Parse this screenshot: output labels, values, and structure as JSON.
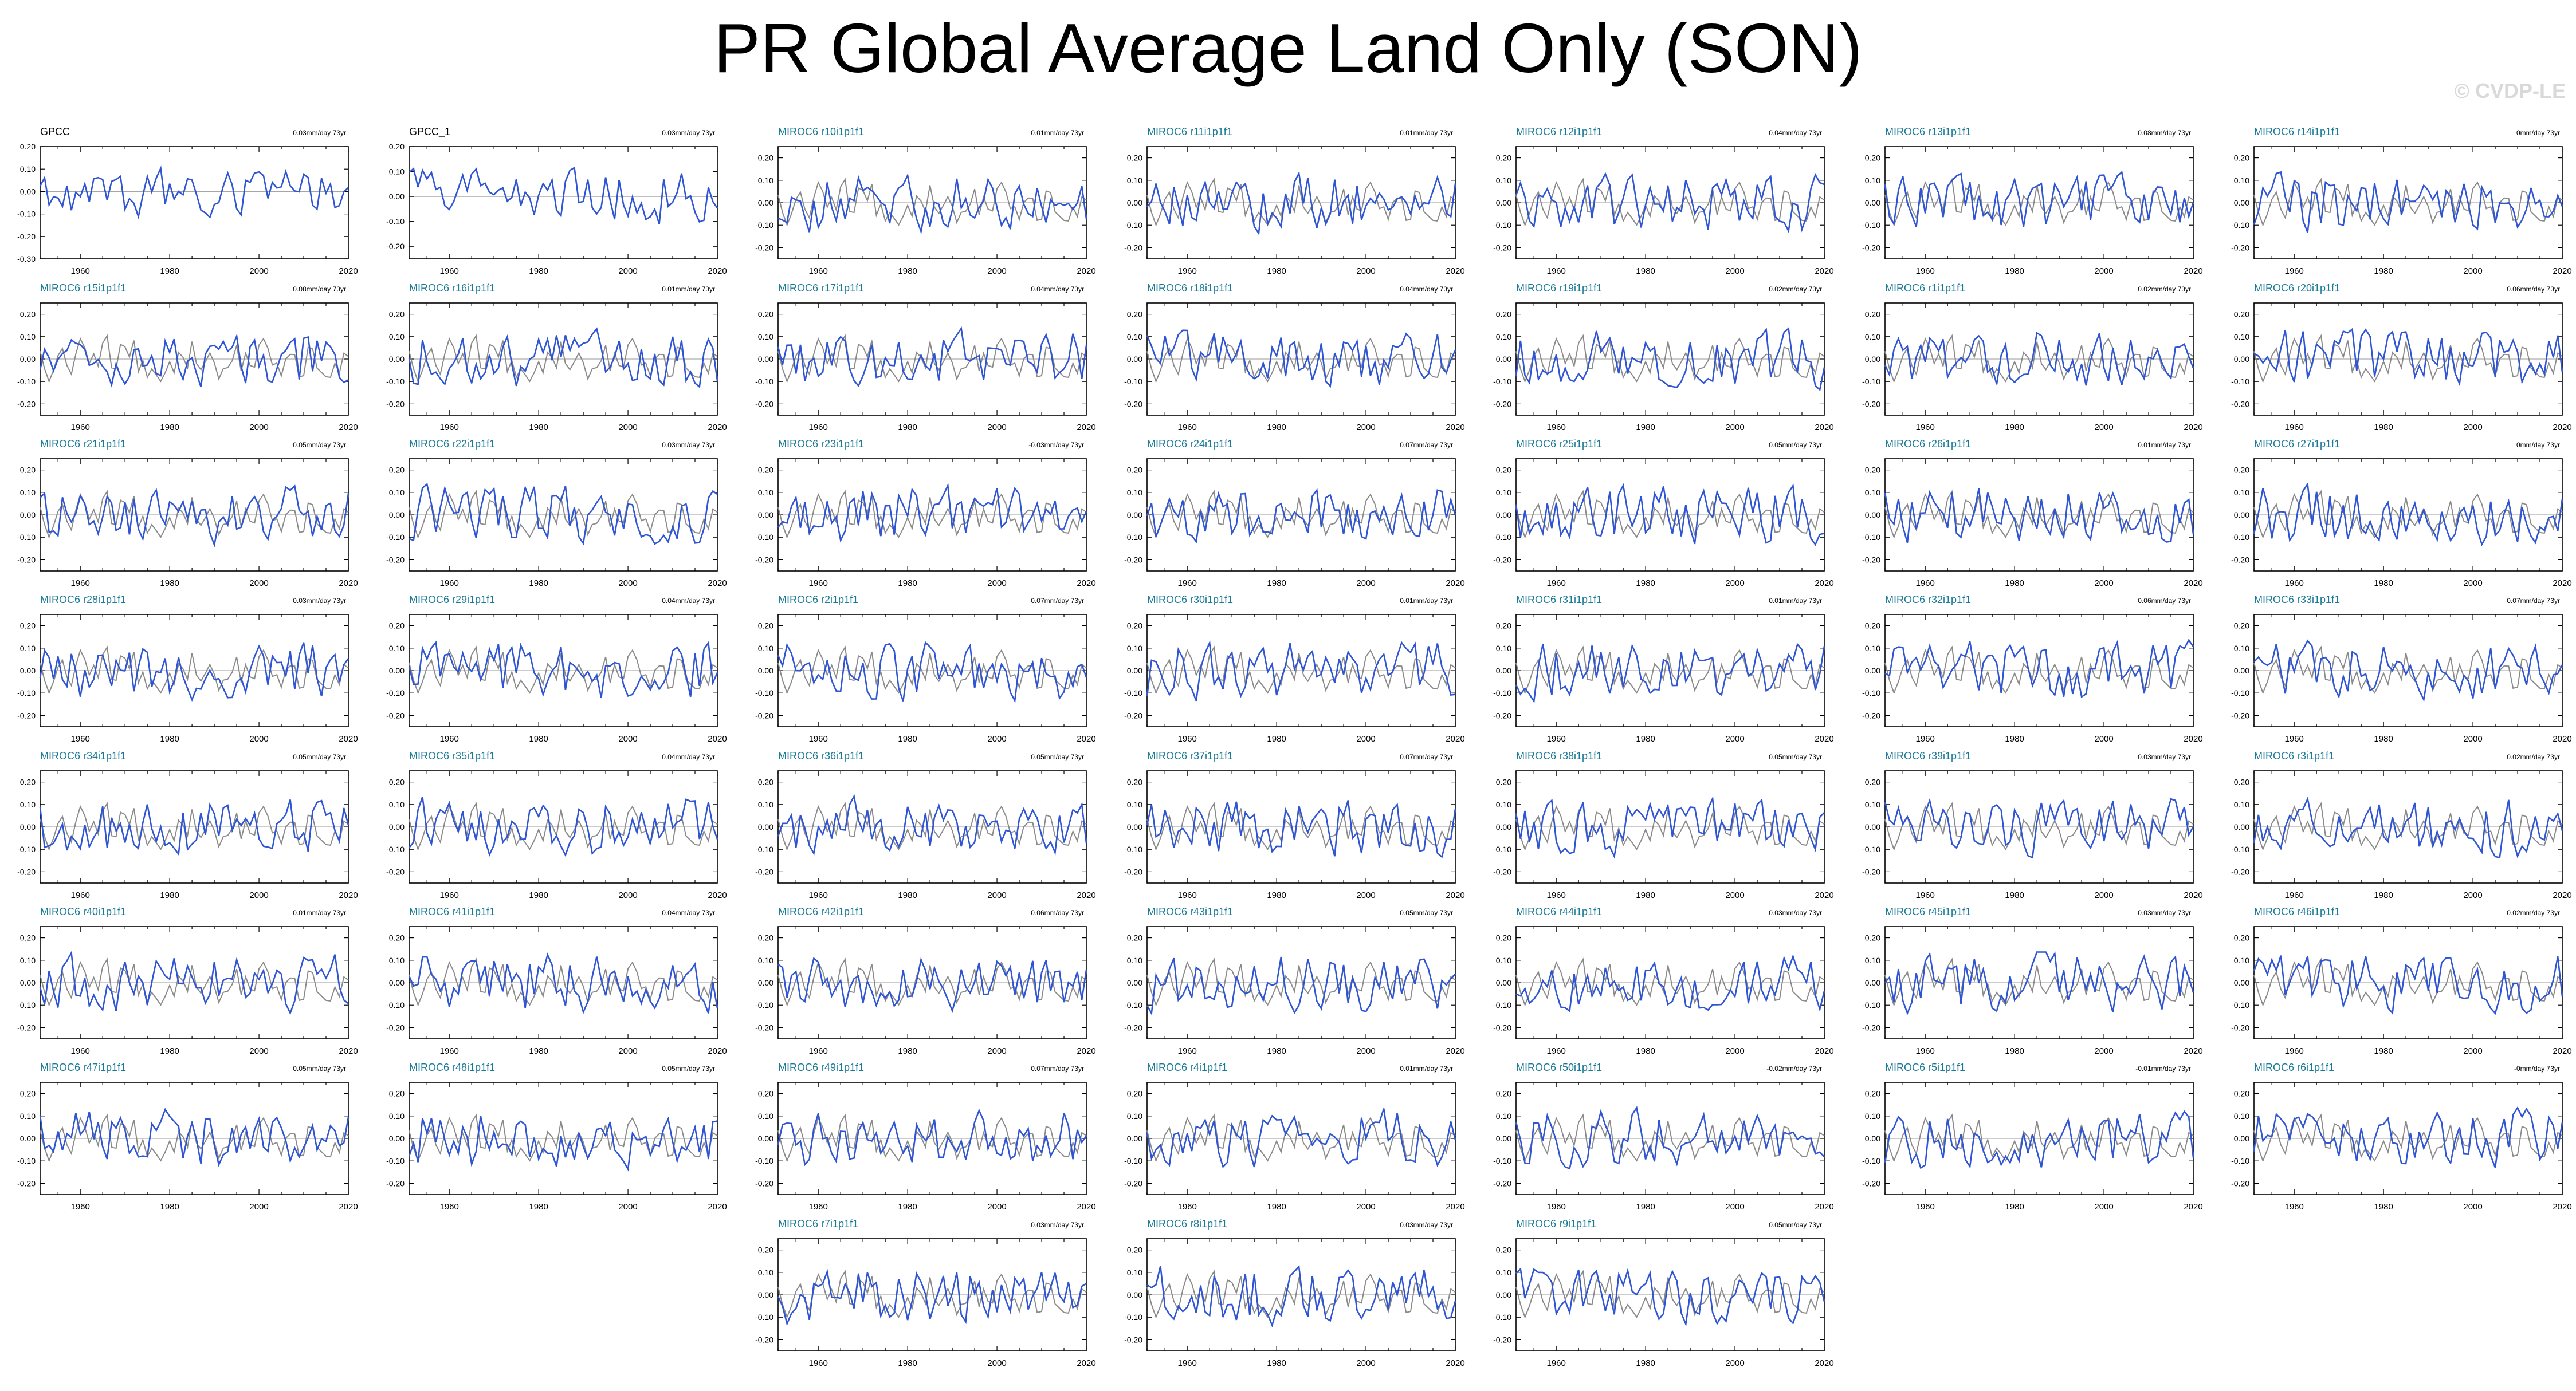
{
  "page": {
    "title": "PR Global Average Land Only (SON)",
    "watermark": "© CVDP-LE"
  },
  "style": {
    "model_color": "#2f55d4",
    "obs_color": "#8a8a8a",
    "obs_panel_color": "#2f55d4",
    "title_color_obs": "#000000",
    "title_color_member": "#1a7a96"
  },
  "chart_data": {
    "type": "line",
    "years": [
      1951,
      2020
    ],
    "xticks": [
      1960,
      1980,
      2000,
      2020
    ],
    "xtick_labels": [
      "1960",
      "1980",
      "2000",
      "2020"
    ],
    "ytick_labels": [
      "0.20",
      "0.10",
      "0.00",
      "-0.10",
      "-0.20",
      "-0.30"
    ],
    "grid": false,
    "panels": [
      {
        "title": "GPCC",
        "trend": "0.03mm/day 73yr",
        "ylim": [
          -0.3,
          0.2
        ],
        "yticks": [
          0.2,
          0.1,
          0.0,
          -0.1,
          -0.2,
          -0.3
        ],
        "obs": true,
        "seed": 1
      },
      {
        "title": "GPCC_1",
        "trend": "0.03mm/day 73yr",
        "ylim": [
          -0.25,
          0.2
        ],
        "yticks": [
          0.2,
          0.1,
          0.0,
          -0.1,
          -0.2
        ],
        "obs": true,
        "seed": 2
      },
      {
        "title": "MIROC6 r10i1p1f1",
        "trend": "0.01mm/day 73yr",
        "seed": 3
      },
      {
        "title": "MIROC6 r11i1p1f1",
        "trend": "0.01mm/day 73yr",
        "seed": 4
      },
      {
        "title": "MIROC6 r12i1p1f1",
        "trend": "0.04mm/day 73yr",
        "seed": 5
      },
      {
        "title": "MIROC6 r13i1p1f1",
        "trend": "0.08mm/day 73yr",
        "seed": 6
      },
      {
        "title": "MIROC6 r14i1p1f1",
        "trend": "0mm/day 73yr",
        "seed": 7
      },
      {
        "title": "MIROC6 r15i1p1f1",
        "trend": "0.08mm/day 73yr",
        "seed": 8
      },
      {
        "title": "MIROC6 r16i1p1f1",
        "trend": "0.01mm/day 73yr",
        "seed": 9
      },
      {
        "title": "MIROC6 r17i1p1f1",
        "trend": "0.04mm/day 73yr",
        "seed": 10
      },
      {
        "title": "MIROC6 r18i1p1f1",
        "trend": "0.04mm/day 73yr",
        "seed": 11
      },
      {
        "title": "MIROC6 r19i1p1f1",
        "trend": "0.02mm/day 73yr",
        "seed": 12
      },
      {
        "title": "MIROC6 r1i1p1f1",
        "trend": "0.02mm/day 73yr",
        "seed": 13
      },
      {
        "title": "MIROC6 r20i1p1f1",
        "trend": "0.06mm/day 73yr",
        "seed": 14
      },
      {
        "title": "MIROC6 r21i1p1f1",
        "trend": "0.05mm/day 73yr",
        "seed": 15
      },
      {
        "title": "MIROC6 r22i1p1f1",
        "trend": "0.03mm/day 73yr",
        "seed": 16
      },
      {
        "title": "MIROC6 r23i1p1f1",
        "trend": "-0.03mm/day 73yr",
        "seed": 17
      },
      {
        "title": "MIROC6 r24i1p1f1",
        "trend": "0.07mm/day 73yr",
        "seed": 18
      },
      {
        "title": "MIROC6 r25i1p1f1",
        "trend": "0.05mm/day 73yr",
        "seed": 19
      },
      {
        "title": "MIROC6 r26i1p1f1",
        "trend": "0.01mm/day 73yr",
        "seed": 20
      },
      {
        "title": "MIROC6 r27i1p1f1",
        "trend": "0mm/day 73yr",
        "seed": 21
      },
      {
        "title": "MIROC6 r28i1p1f1",
        "trend": "0.03mm/day 73yr",
        "seed": 22
      },
      {
        "title": "MIROC6 r29i1p1f1",
        "trend": "0.04mm/day 73yr",
        "seed": 23
      },
      {
        "title": "MIROC6 r2i1p1f1",
        "trend": "0.07mm/day 73yr",
        "seed": 24
      },
      {
        "title": "MIROC6 r30i1p1f1",
        "trend": "0.01mm/day 73yr",
        "seed": 25
      },
      {
        "title": "MIROC6 r31i1p1f1",
        "trend": "0.01mm/day 73yr",
        "seed": 26
      },
      {
        "title": "MIROC6 r32i1p1f1",
        "trend": "0.06mm/day 73yr",
        "seed": 27
      },
      {
        "title": "MIROC6 r33i1p1f1",
        "trend": "0.07mm/day 73yr",
        "seed": 28
      },
      {
        "title": "MIROC6 r34i1p1f1",
        "trend": "0.05mm/day 73yr",
        "seed": 29
      },
      {
        "title": "MIROC6 r35i1p1f1",
        "trend": "0.04mm/day 73yr",
        "seed": 30
      },
      {
        "title": "MIROC6 r36i1p1f1",
        "trend": "0.05mm/day 73yr",
        "seed": 31
      },
      {
        "title": "MIROC6 r37i1p1f1",
        "trend": "0.07mm/day 73yr",
        "seed": 32
      },
      {
        "title": "MIROC6 r38i1p1f1",
        "trend": "0.05mm/day 73yr",
        "seed": 33
      },
      {
        "title": "MIROC6 r39i1p1f1",
        "trend": "0.03mm/day 73yr",
        "seed": 34
      },
      {
        "title": "MIROC6 r3i1p1f1",
        "trend": "0.02mm/day 73yr",
        "seed": 35
      },
      {
        "title": "MIROC6 r40i1p1f1",
        "trend": "0.01mm/day 73yr",
        "seed": 36
      },
      {
        "title": "MIROC6 r41i1p1f1",
        "trend": "0.04mm/day 73yr",
        "seed": 37
      },
      {
        "title": "MIROC6 r42i1p1f1",
        "trend": "0.06mm/day 73yr",
        "seed": 38
      },
      {
        "title": "MIROC6 r43i1p1f1",
        "trend": "0.05mm/day 73yr",
        "seed": 39
      },
      {
        "title": "MIROC6 r44i1p1f1",
        "trend": "0.03mm/day 73yr",
        "seed": 40
      },
      {
        "title": "MIROC6 r45i1p1f1",
        "trend": "0.03mm/day 73yr",
        "seed": 41
      },
      {
        "title": "MIROC6 r46i1p1f1",
        "trend": "0.02mm/day 73yr",
        "seed": 42
      },
      {
        "title": "MIROC6 r47i1p1f1",
        "trend": "0.05mm/day 73yr",
        "seed": 43
      },
      {
        "title": "MIROC6 r48i1p1f1",
        "trend": "0.05mm/day 73yr",
        "seed": 44
      },
      {
        "title": "MIROC6 r49i1p1f1",
        "trend": "0.07mm/day 73yr",
        "seed": 45
      },
      {
        "title": "MIROC6 r4i1p1f1",
        "trend": "0.01mm/day 73yr",
        "seed": 46
      },
      {
        "title": "MIROC6 r50i1p1f1",
        "trend": "-0.02mm/day 73yr",
        "seed": 47
      },
      {
        "title": "MIROC6 r5i1p1f1",
        "trend": "-0.01mm/day 73yr",
        "seed": 48
      },
      {
        "title": "MIROC6 r6i1p1f1",
        "trend": "-0mm/day 73yr",
        "seed": 49
      },
      {
        "title": "MIROC6 r7i1p1f1",
        "trend": "0.03mm/day 73yr",
        "seed": 50
      },
      {
        "title": "MIROC6 r8i1p1f1",
        "trend": "0.03mm/day 73yr",
        "seed": 51
      },
      {
        "title": "MIROC6 r9i1p1f1",
        "trend": "0.05mm/day 73yr",
        "seed": 52
      }
    ],
    "default_ylim": [
      -0.25,
      0.25
    ],
    "default_yticks": [
      0.2,
      0.1,
      0.0,
      -0.1,
      -0.2
    ]
  }
}
